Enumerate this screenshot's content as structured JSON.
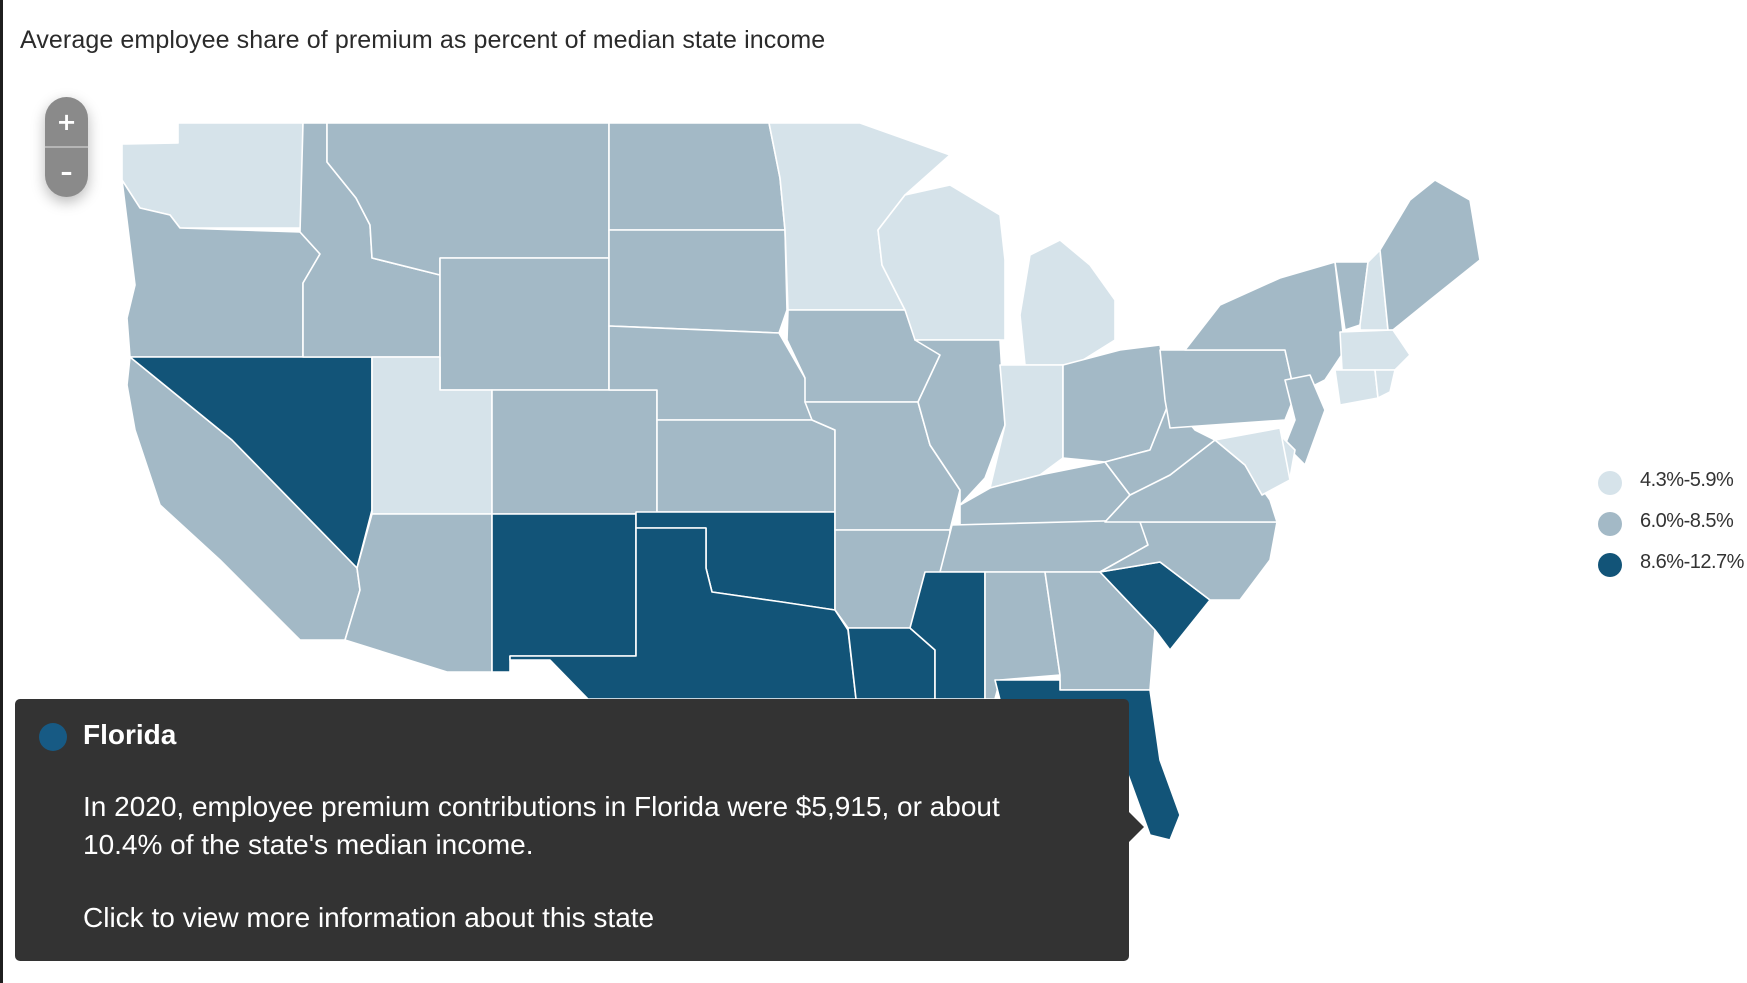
{
  "title": "Average employee share of premium as percent of median state income",
  "zoom": {
    "in_label": "+",
    "out_label": "–"
  },
  "colors": {
    "low": "#d6e3ea",
    "mid": "#a3b9c6",
    "high": "#125478",
    "tooltip_bg": "#333333"
  },
  "legend": [
    {
      "label": "4.3%-5.9%",
      "color": "#d6e3ea"
    },
    {
      "label": "6.0%-8.5%",
      "color": "#a3b9c6"
    },
    {
      "label": "8.6%-12.7%",
      "color": "#125478"
    }
  ],
  "states": [
    {
      "name": "Washington",
      "bin": "low"
    },
    {
      "name": "Oregon",
      "bin": "mid"
    },
    {
      "name": "California",
      "bin": "mid"
    },
    {
      "name": "Nevada",
      "bin": "high"
    },
    {
      "name": "Idaho",
      "bin": "mid"
    },
    {
      "name": "Montana",
      "bin": "mid"
    },
    {
      "name": "Wyoming",
      "bin": "mid"
    },
    {
      "name": "Utah",
      "bin": "low"
    },
    {
      "name": "Arizona",
      "bin": "mid"
    },
    {
      "name": "Colorado",
      "bin": "mid"
    },
    {
      "name": "New Mexico",
      "bin": "high"
    },
    {
      "name": "North Dakota",
      "bin": "mid"
    },
    {
      "name": "South Dakota",
      "bin": "mid"
    },
    {
      "name": "Nebraska",
      "bin": "mid"
    },
    {
      "name": "Kansas",
      "bin": "mid"
    },
    {
      "name": "Oklahoma",
      "bin": "high"
    },
    {
      "name": "Texas",
      "bin": "high"
    },
    {
      "name": "Minnesota",
      "bin": "low"
    },
    {
      "name": "Iowa",
      "bin": "mid"
    },
    {
      "name": "Missouri",
      "bin": "mid"
    },
    {
      "name": "Arkansas",
      "bin": "mid"
    },
    {
      "name": "Louisiana",
      "bin": "high"
    },
    {
      "name": "Wisconsin",
      "bin": "low"
    },
    {
      "name": "Illinois",
      "bin": "mid"
    },
    {
      "name": "Michigan",
      "bin": "low"
    },
    {
      "name": "Indiana",
      "bin": "low"
    },
    {
      "name": "Ohio",
      "bin": "mid"
    },
    {
      "name": "Kentucky",
      "bin": "mid"
    },
    {
      "name": "Tennessee",
      "bin": "mid"
    },
    {
      "name": "Mississippi",
      "bin": "high"
    },
    {
      "name": "Alabama",
      "bin": "mid"
    },
    {
      "name": "Georgia",
      "bin": "mid"
    },
    {
      "name": "Florida",
      "bin": "high"
    },
    {
      "name": "South Carolina",
      "bin": "high"
    },
    {
      "name": "North Carolina",
      "bin": "mid"
    },
    {
      "name": "Virginia",
      "bin": "mid"
    },
    {
      "name": "West Virginia",
      "bin": "mid"
    },
    {
      "name": "Pennsylvania",
      "bin": "mid"
    },
    {
      "name": "New York",
      "bin": "mid"
    },
    {
      "name": "Vermont",
      "bin": "mid"
    },
    {
      "name": "New Hampshire",
      "bin": "low"
    },
    {
      "name": "Maine",
      "bin": "mid"
    },
    {
      "name": "Massachusetts",
      "bin": "low"
    },
    {
      "name": "Connecticut",
      "bin": "low"
    },
    {
      "name": "Rhode Island",
      "bin": "low"
    },
    {
      "name": "New Jersey",
      "bin": "mid"
    },
    {
      "name": "Delaware",
      "bin": "low"
    },
    {
      "name": "Maryland",
      "bin": "low"
    }
  ],
  "tooltip": {
    "state": "Florida",
    "body": "In 2020, employee premium contributions in Florida were $5,915, or about 10.4% of the state's median income.",
    "link": "Click to view more information about this state",
    "dot_color": "#175a84"
  }
}
